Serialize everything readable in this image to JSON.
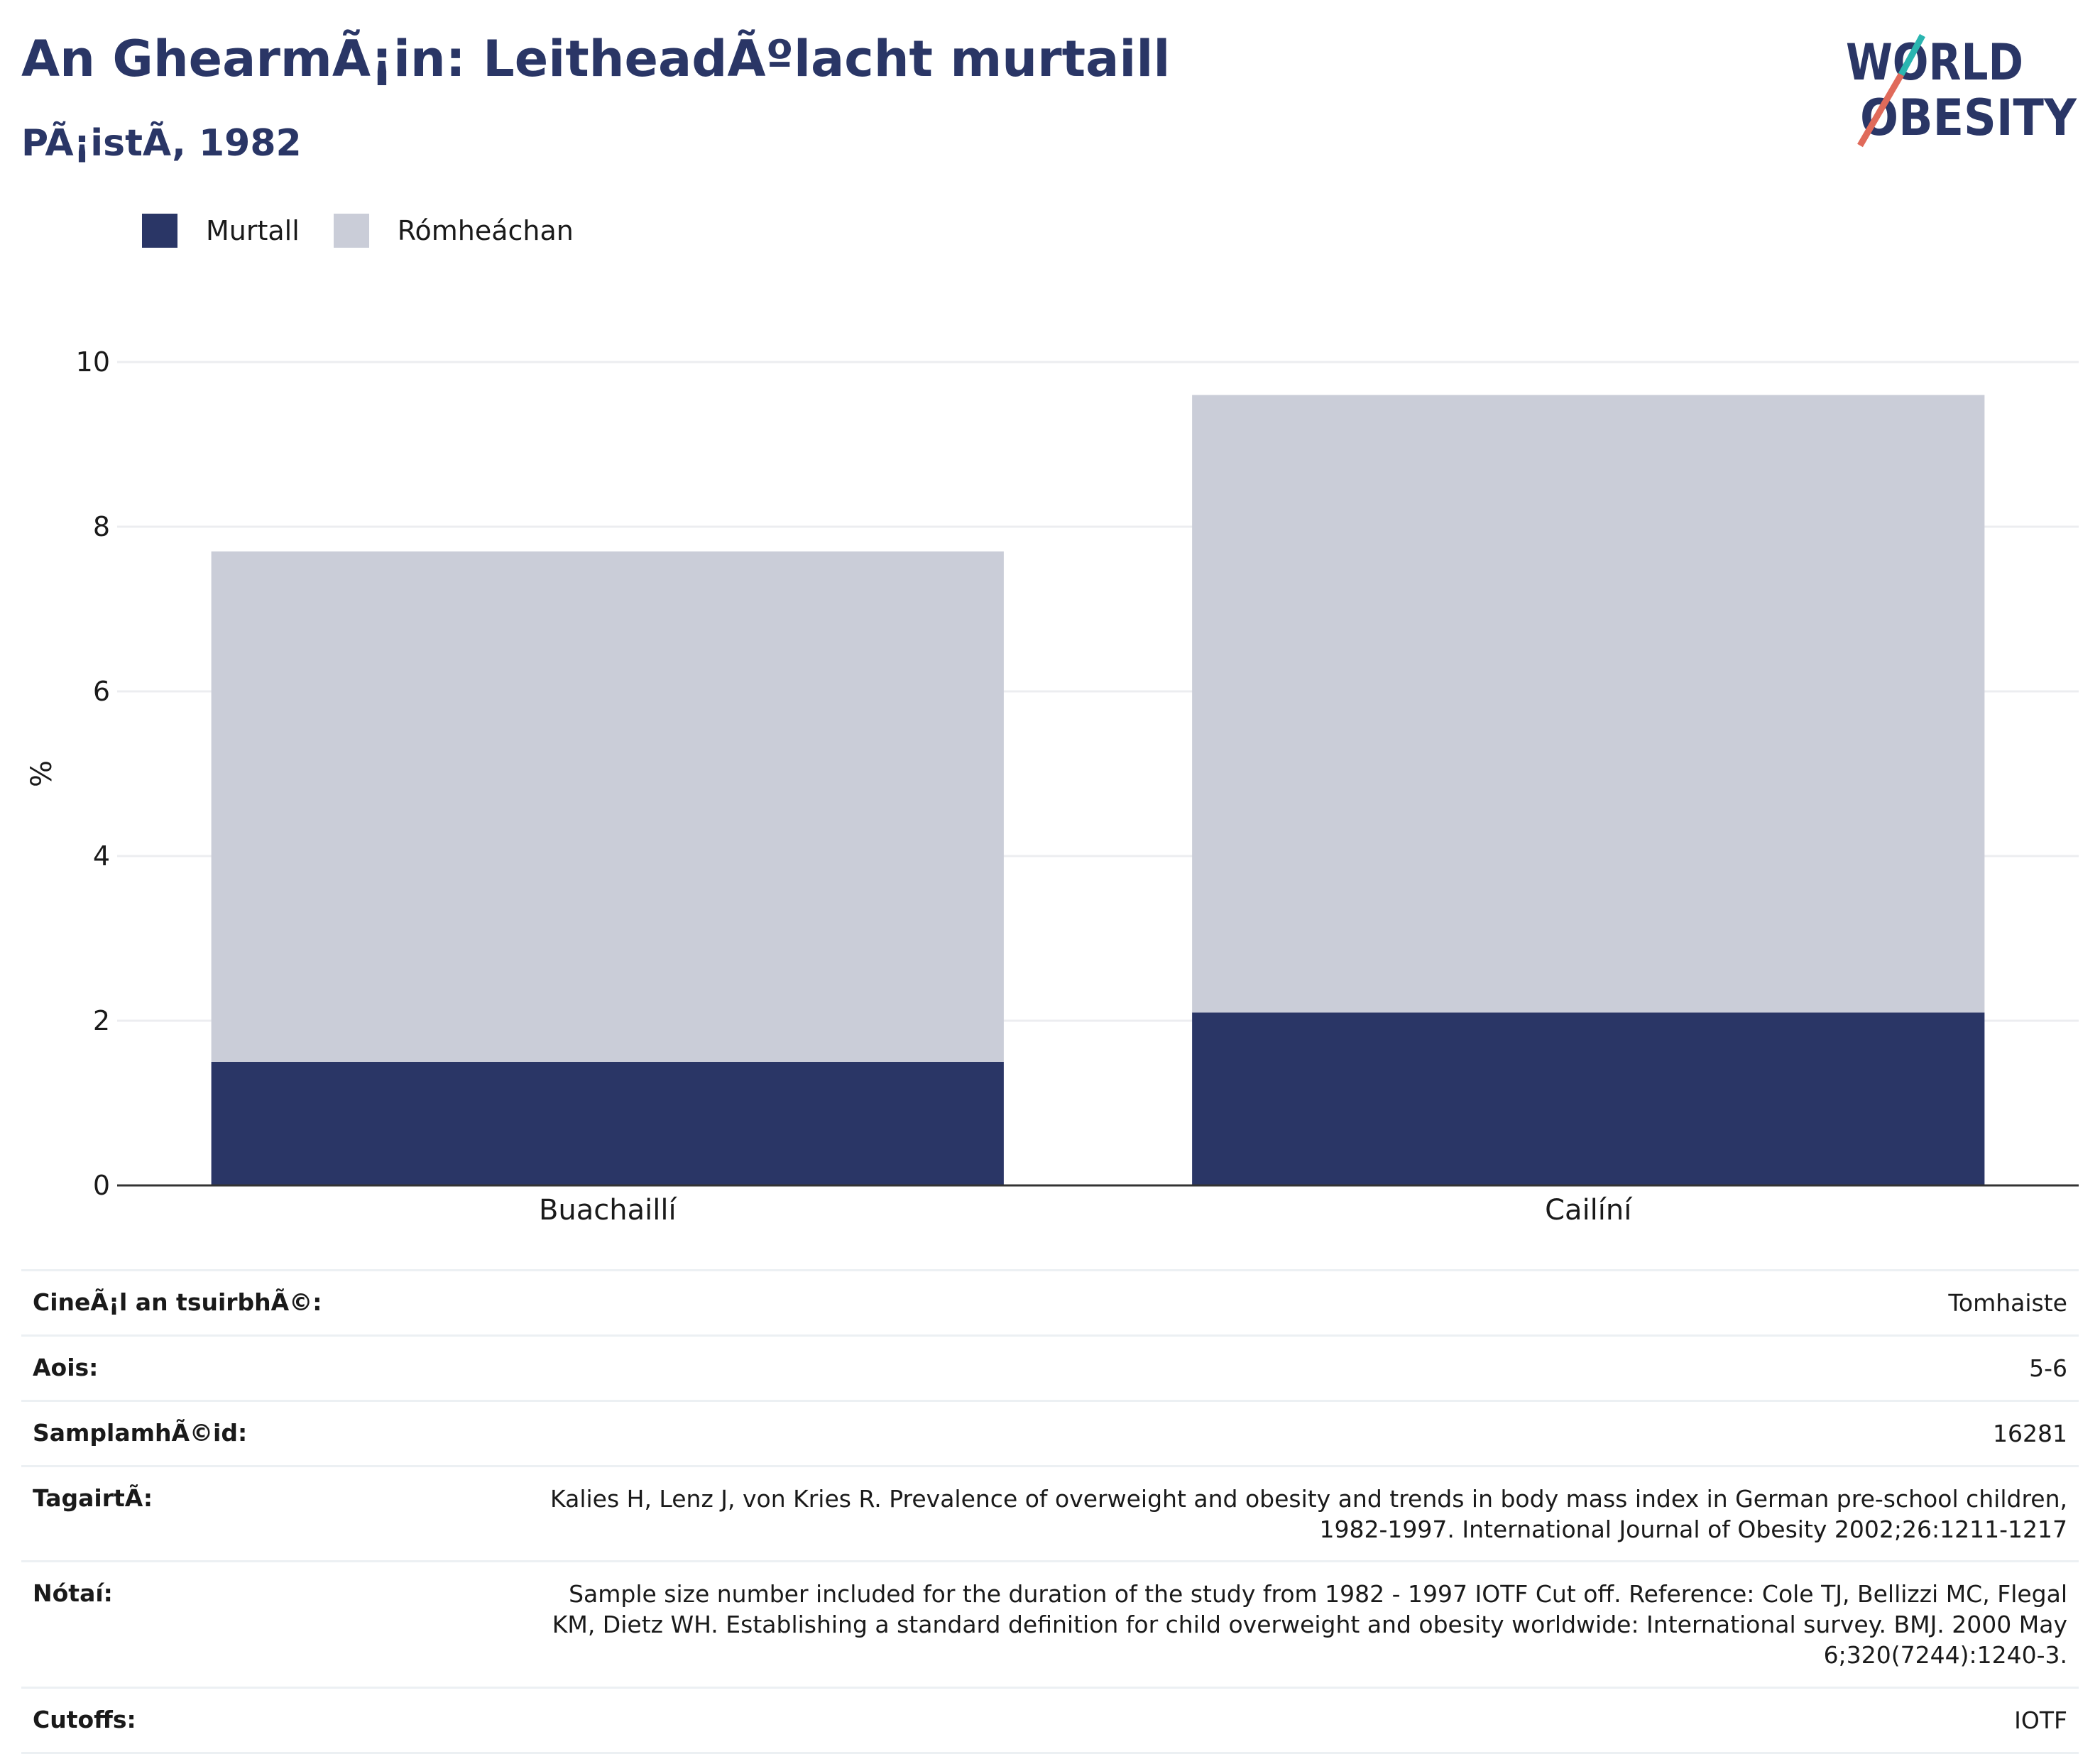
{
  "header": {
    "title": "An GhearmÃ¡in: LeitheadÃºlacht murtaill",
    "subtitle": "PÃ¡istÃ, 1982"
  },
  "logo": {
    "line1": "WORLD",
    "line2": "OBESITY"
  },
  "legend": {
    "items": [
      {
        "label": "Murtall",
        "color": "#2a3666"
      },
      {
        "label": "Rómheáchan",
        "color": "#cacdd8"
      }
    ]
  },
  "chart_data": {
    "type": "bar",
    "stacked": true,
    "categories": [
      "Buachaillí",
      "Cailíní"
    ],
    "series": [
      {
        "name": "Murtall",
        "color": "#2a3666",
        "values": [
          1.5,
          2.1
        ]
      },
      {
        "name": "Rómheáchan",
        "color": "#cacdd8",
        "values": [
          6.2,
          7.5
        ]
      }
    ],
    "ylabel": "%",
    "ylim": [
      0,
      10
    ],
    "yticks": [
      0,
      2,
      4,
      6,
      8,
      10
    ],
    "grid": true,
    "legend_position": "top-left"
  },
  "info": {
    "rows": [
      {
        "label": "CineÃ¡l an tsuirbhÃ©:",
        "value": "Tomhaiste"
      },
      {
        "label": "Aois:",
        "value": "5-6"
      },
      {
        "label": "SamplamhÃ©id:",
        "value": "16281"
      },
      {
        "label": "TagairtÃ:",
        "value": "Kalies H, Lenz J, von Kries R. Prevalence of overweight and obesity and trends in body mass index in German pre-school children, 1982-1997. International Journal of Obesity 2002;26:1211-1217"
      },
      {
        "label": "Nótaí:",
        "value": "Sample size number included for the duration of the study from 1982 - 1997 IOTF Cut off. Reference: Cole TJ, Bellizzi MC, Flegal KM, Dietz WH. Establishing a standard definition for child overweight and obesity worldwide: International survey. BMJ. 2000 May 6;320(7244):1240-3."
      },
      {
        "label": "Cutoffs:",
        "value": "IOTF"
      }
    ]
  }
}
